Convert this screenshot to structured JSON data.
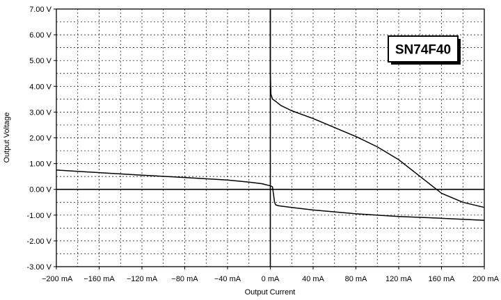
{
  "chart_data": {
    "type": "line",
    "title": "",
    "xlabel": "Output Current",
    "ylabel": "Output Voltage",
    "device_label": "SN74F40",
    "xlim": [
      -200,
      200
    ],
    "ylim": [
      -3,
      7
    ],
    "x_unit": "mA",
    "y_unit": "V",
    "x_ticks": [
      -200,
      -160,
      -120,
      -80,
      -40,
      0,
      40,
      80,
      120,
      160,
      200
    ],
    "x_tick_labels": [
      "−200 mA",
      "−160 mA",
      "−120 mA",
      "−80 mA",
      "−40 mA",
      "0 mA",
      "40 mA",
      "80 mA",
      "120 mA",
      "160 mA",
      "200 mA"
    ],
    "y_ticks": [
      7,
      6,
      5,
      4,
      3,
      2,
      1,
      0,
      -1,
      -2,
      -3
    ],
    "y_tick_labels": [
      "7.00 V",
      "6.00 V",
      "5.00 V",
      "4.00 V",
      "3.00 V",
      "2.00 V",
      "1.00 V",
      "0.00 V",
      "-1.00 V",
      "-2.00 V",
      "-3.00 V"
    ],
    "grid": true,
    "series": [
      {
        "x": [
          0,
          0,
          0.5,
          2,
          4,
          10,
          20,
          40,
          60,
          80,
          100,
          120,
          140,
          160,
          180,
          200
        ],
        "y": [
          7,
          4.5,
          3.7,
          3.5,
          3.45,
          3.25,
          3.05,
          2.75,
          2.4,
          2.05,
          1.65,
          1.15,
          0.5,
          -0.15,
          -0.5,
          -0.7
        ]
      },
      {
        "x": [
          -200,
          -160,
          -120,
          -80,
          -40,
          -20,
          -8,
          -2,
          0,
          2,
          3,
          4,
          5,
          8,
          20,
          40,
          80,
          120,
          160,
          200
        ],
        "y": [
          0.75,
          0.65,
          0.55,
          0.46,
          0.36,
          0.28,
          0.22,
          0.16,
          0.14,
          0.1,
          -0.2,
          -0.5,
          -0.6,
          -0.64,
          -0.7,
          -0.8,
          -0.95,
          -1.05,
          -1.12,
          -1.2
        ]
      }
    ]
  }
}
